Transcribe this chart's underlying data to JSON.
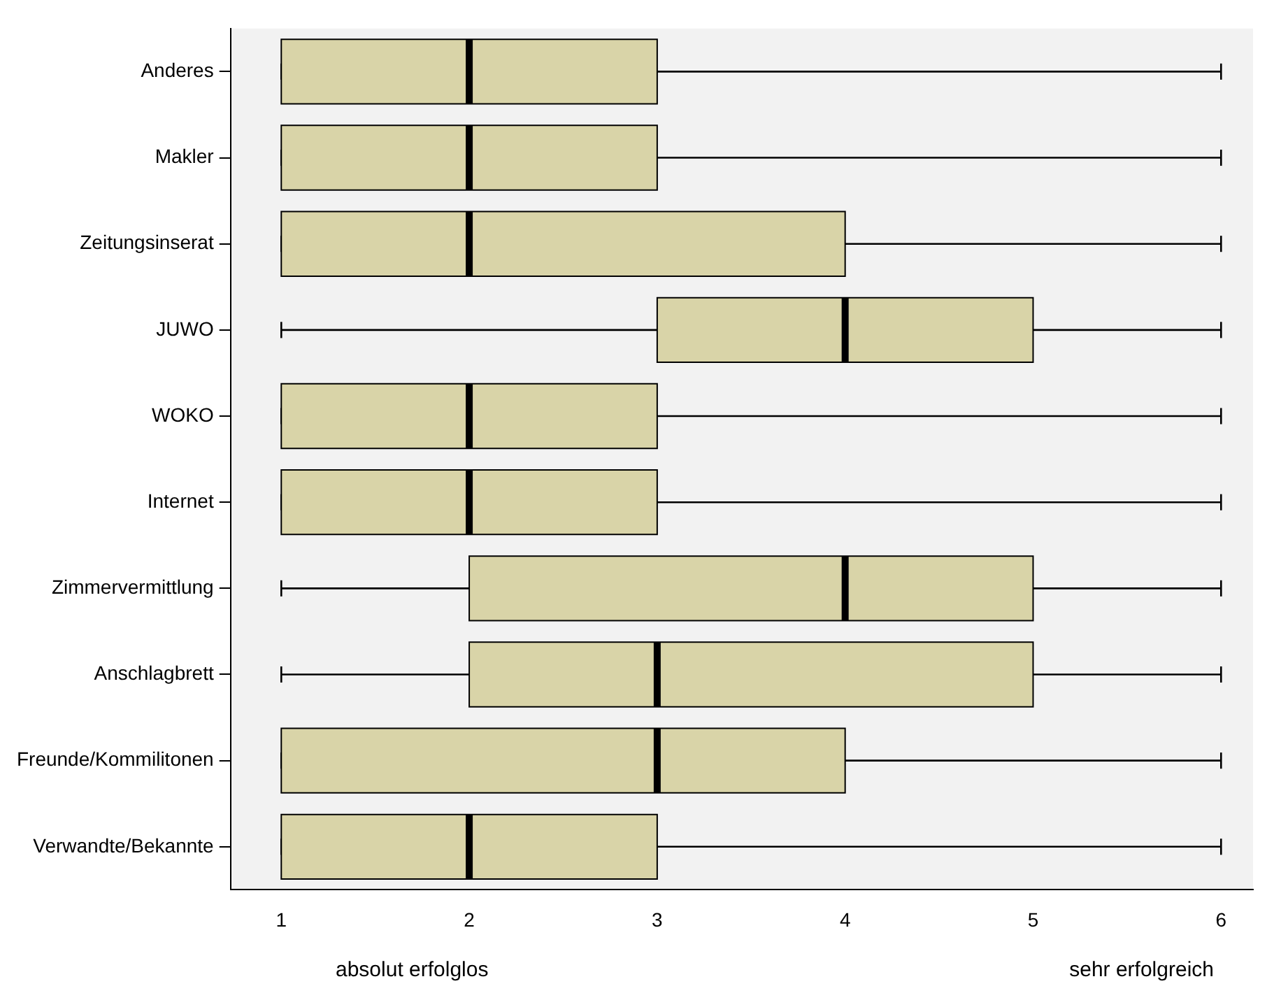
{
  "chart_data": {
    "type": "box",
    "orientation": "horizontal",
    "categories": [
      "Anderes",
      "Makler",
      "Zeitungsinserat",
      "JUWO",
      "WOKO",
      "Internet",
      "Zimmervermittlung",
      "Anschlagbrett",
      "Freunde/Kommilitonen",
      "Verwandte/Bekannte"
    ],
    "boxes": [
      {
        "low": 1,
        "q1": 1,
        "median": 2,
        "q3": 3,
        "high": 6
      },
      {
        "low": 1,
        "q1": 1,
        "median": 2,
        "q3": 3,
        "high": 6
      },
      {
        "low": 1,
        "q1": 1,
        "median": 2,
        "q3": 4,
        "high": 6
      },
      {
        "low": 1,
        "q1": 3,
        "median": 4,
        "q3": 5,
        "high": 6
      },
      {
        "low": 1,
        "q1": 1,
        "median": 2,
        "q3": 3,
        "high": 6
      },
      {
        "low": 1,
        "q1": 1,
        "median": 2,
        "q3": 3,
        "high": 6
      },
      {
        "low": 1,
        "q1": 2,
        "median": 4,
        "q3": 5,
        "high": 6
      },
      {
        "low": 1,
        "q1": 2,
        "median": 3,
        "q3": 5,
        "high": 6
      },
      {
        "low": 1,
        "q1": 1,
        "median": 3,
        "q3": 4,
        "high": 6
      },
      {
        "low": 1,
        "q1": 1,
        "median": 2,
        "q3": 3,
        "high": 6
      }
    ],
    "color": "#d9d4a8",
    "xlim": [
      0.73,
      6.17
    ],
    "xticks": [
      1,
      2,
      3,
      4,
      5,
      6
    ],
    "grid": false,
    "annotations": [
      "absolut erfolglos",
      "sehr erfolgreich"
    ]
  }
}
